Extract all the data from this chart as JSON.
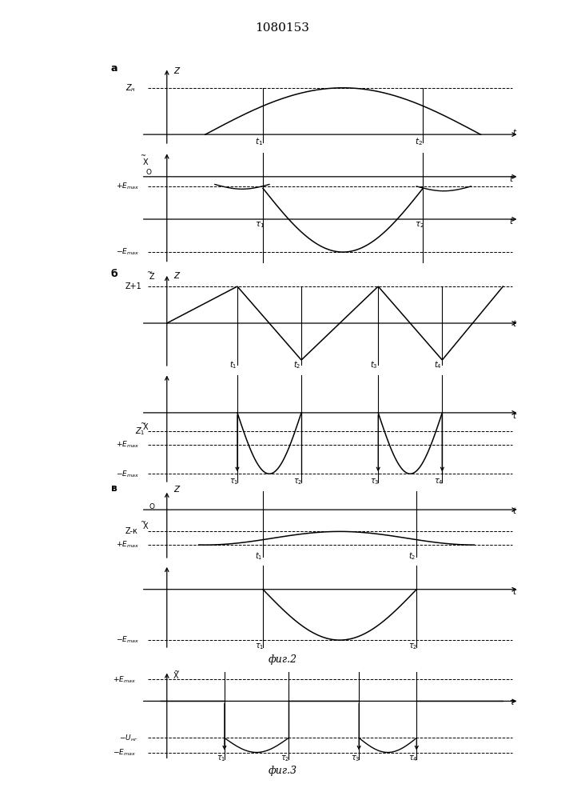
{
  "title": "1080153",
  "fig2_label": "фиг.2",
  "fig3_label": "фиг.3",
  "bg_color": "#ffffff",
  "panels": {
    "a_label": "a",
    "b_label": "б",
    "v_label": "в"
  }
}
